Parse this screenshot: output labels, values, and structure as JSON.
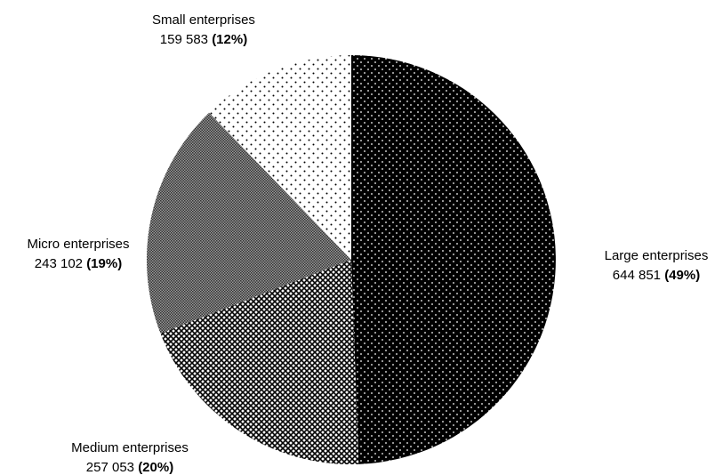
{
  "chart_data": {
    "type": "pie",
    "title": "",
    "start": "12 o'clock",
    "direction": "clockwise",
    "slices": [
      {
        "name": "Large enterprises",
        "value": 644851,
        "value_label": "644 851",
        "percent_label": "(49%)",
        "color": "#000000",
        "pattern": "white-dots-on-black"
      },
      {
        "name": "Medium enterprises",
        "value": 257053,
        "value_label": "257 053",
        "percent_label": "(20%)",
        "color": "#555555",
        "pattern": "dense-crosshatch"
      },
      {
        "name": "Micro enterprises",
        "value": 243102,
        "value_label": "243 102",
        "percent_label": "(19%)",
        "color": "#888888",
        "pattern": "fine-checker"
      },
      {
        "name": "Small enterprises",
        "value": 159583,
        "value_label": "159 583",
        "percent_label": "(12%)",
        "color": "#ffffff",
        "pattern": "black-dots-on-white"
      }
    ]
  }
}
